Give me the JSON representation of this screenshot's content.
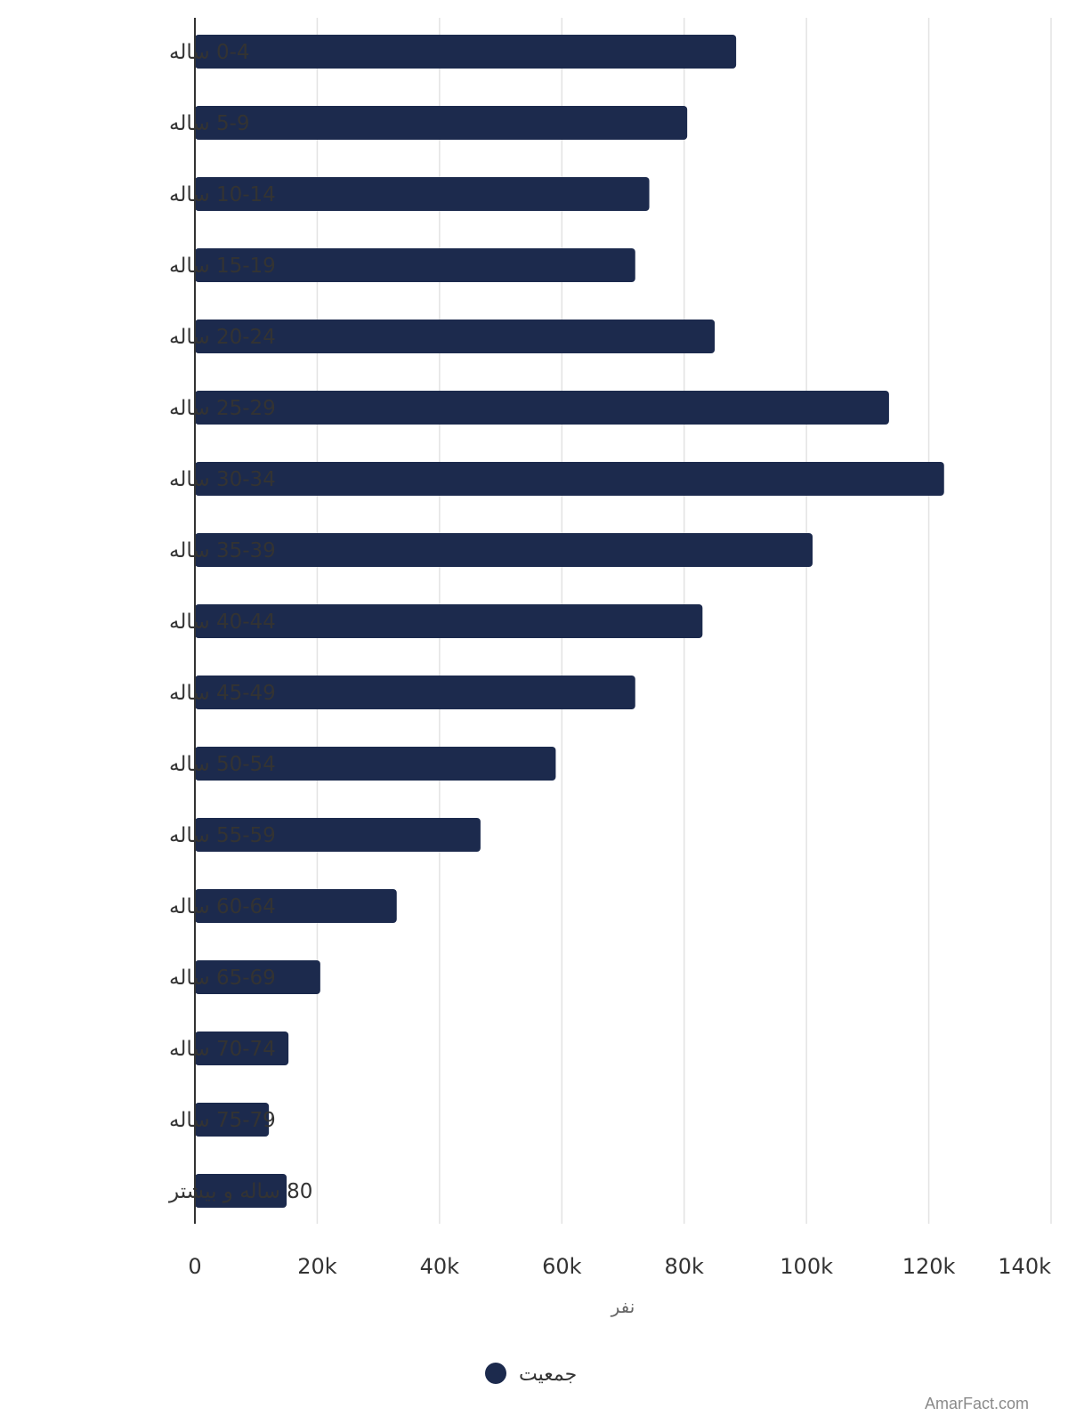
{
  "chart_data": {
    "type": "bar",
    "orientation": "horizontal",
    "categories": [
      "0-4 ساله",
      "5-9 ساله",
      "10-14 ساله",
      "15-19 ساله",
      "20-24 ساله",
      "25-29 ساله",
      "30-34 ساله",
      "35-39 ساله",
      "40-44 ساله",
      "45-49 ساله",
      "50-54 ساله",
      "55-59 ساله",
      "60-64 ساله",
      "65-69 ساله",
      "70-74 ساله",
      "75-79 ساله",
      "80 ساله و بیشتر"
    ],
    "series": [
      {
        "name": "جمعیت",
        "color": "#1c2a4d",
        "values": [
          88500,
          80500,
          74300,
          72000,
          85000,
          113500,
          122500,
          101000,
          83000,
          72000,
          59000,
          46700,
          33000,
          20500,
          15300,
          12100,
          15000
        ]
      }
    ],
    "xlabel": "نفر",
    "xlim": [
      0,
      140000
    ],
    "xticks": [
      {
        "value": 0,
        "label": "0"
      },
      {
        "value": 20000,
        "label": "20k"
      },
      {
        "value": 40000,
        "label": "40k"
      },
      {
        "value": 60000,
        "label": "60k"
      },
      {
        "value": 80000,
        "label": "80k"
      },
      {
        "value": 100000,
        "label": "100k"
      },
      {
        "value": 120000,
        "label": "120k"
      },
      {
        "value": 140000,
        "label": "140k"
      }
    ],
    "grid": true,
    "legend_position": "bottom"
  },
  "credit": "AmarFact.com"
}
